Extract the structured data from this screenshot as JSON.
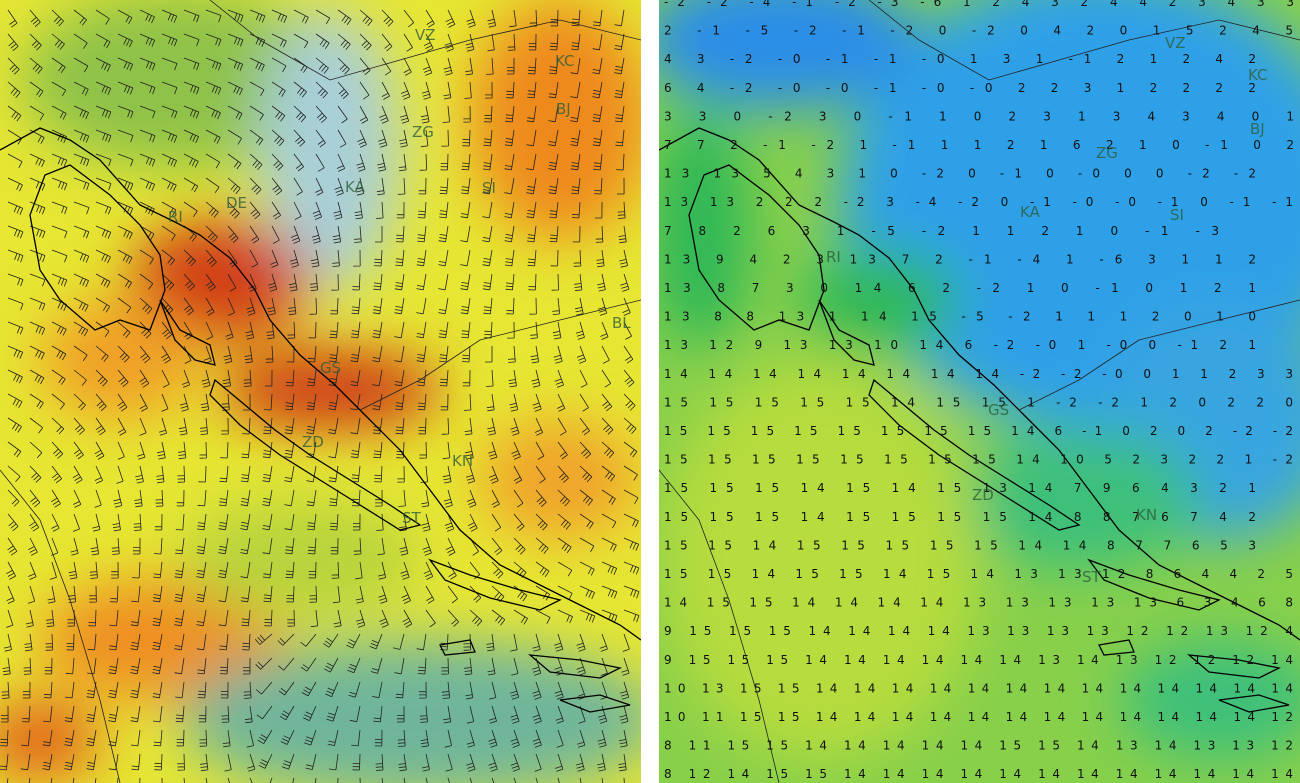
{
  "left_panel": {
    "labels": [
      "VZ",
      "KC",
      "BJ",
      "ZG",
      "KA",
      "SI",
      "DE",
      "RI",
      "BL",
      "GS",
      "ZD",
      "KN",
      "ST"
    ]
  },
  "right_panel": {
    "labels": [
      "VZ",
      "KC",
      "BJ",
      "ZG",
      "KA",
      "SI",
      "RI",
      "GS",
      "ZD",
      "KN",
      "ST"
    ],
    "rows": [
      "-2 -2 -4 -1 -2 -3 -6 1 2 4 3 2 4 4 2 3 4 3 3",
      "2 -1 -5 -2 -1 -2 0 -2 0 4 2 0 1 5 2 4 5",
      "4 3 -2 -0 -1 -1 -0 1 3 1 -1 2 1 2 4 2",
      "6 4 -2 -0 -0 -1 -0 -0 2 2 3 1 2 2 2 2",
      "3 3 0 -2 3 0 -1 1 0 2 3 1 3 4 3 4 0 1",
      "7 7 2 -1 -2 1 -1 1 1 2 1 6 2 1 0 -1 0 2",
      "13 13 5 4 3 1 0 -2 0 -1 0 -0 0 0 -2 -2",
      "13 13 2 2 2 -2 3 -4 -2 0 -1 -0 -0 -1 0 -1 -1",
      "7 8 2 6 3 1 -5 -2 1 1 2 1 0 -1 -3",
      "13 9 4 2 3 13 7 2 -1 -4 1 -6 3 1 1 2",
      "13 8 7 3 0 14 6 2 -2 1 0 -1 0 1 2 1",
      "13 8 8 13 1 14 15 -5 -2 1 1 1 2 0 1 0",
      "13 12 9 13 13 10 14 6 -2 -0 1 -0 0 -1 2 1",
      "14 14 14 14 14 14 14 14 -2 -2 -0 0 1 1 2 3 3",
      "15 15 15 15 15 14 15 15 1 -2 -2 1 2 0 2 2 0",
      "15 15 15 15 15 15 15 15 14 6 -1 0 2 0 2 -2 -2",
      "15 15 15 15 15 15 15 15 14 10 5 2 3 2 2 1 -2",
      "15 15 15 14 15 14 15 13 14 7 9 6 4 3 2 1",
      "15 15 15 14 15 15 15 15 14 8 8 7 6 7 4 2",
      "15 15 14 15 15 15 15 15 14 14 8 7 7 6 5 3",
      "15 15 14 15 15 14 15 14 13 13 12 8 6 4 4 2 5",
      "14 15 15 14 14 14 14 13 13 13 13 13 6 3 4 6 8",
      "9 15 15 15 14 14 14 14 13 13 13 13 12 12 13 12 4",
      "9 15 15 15 14 14 14 14 14 14 13 14 13 12 12 12 14",
      "10 13 15 15 14 14 14 14 14 14 14 14 14 14 14 14 14",
      "10 11 15 15 14 14 14 14 14 14 14 14 14 14 14 14 12",
      "8 11 15 15 14 14 14 14 14 15 15 14 13 14 13 13 12",
      "8 12 14 15 15 14 14 14 14 14 14 14 14 14 14 14 14"
    ]
  }
}
